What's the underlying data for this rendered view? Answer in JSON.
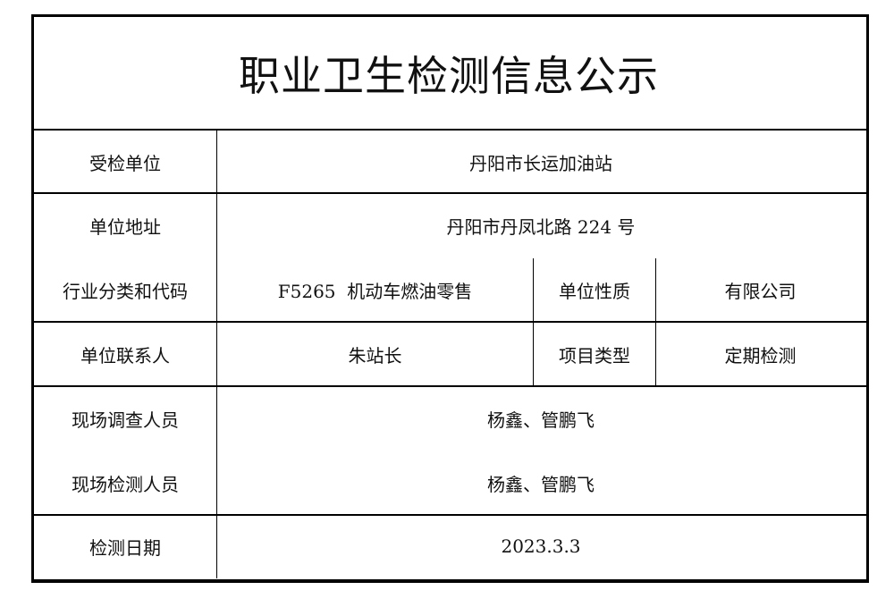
{
  "title": "职业卫生检测信息公示",
  "rows": {
    "unit_label": "受检单位",
    "unit_value": "丹阳市长运加油站",
    "address_label": "单位地址",
    "address_value": "丹阳市丹凤北路 224 号",
    "industry_label": "行业分类和代码",
    "industry_value": "F5265  机动车燃油零售",
    "nature_label": "单位性质",
    "nature_value": "有限公司",
    "contact_label": "单位联系人",
    "contact_value": "朱站长",
    "project_label": "项目类型",
    "project_value": "定期检测",
    "survey_label": "现场调查人员",
    "survey_value": "杨鑫、管鹏飞",
    "inspect_label": "现场检测人员",
    "inspect_value": "杨鑫、管鹏飞",
    "date_label": "检测日期",
    "date_value": "2023.3.3"
  }
}
